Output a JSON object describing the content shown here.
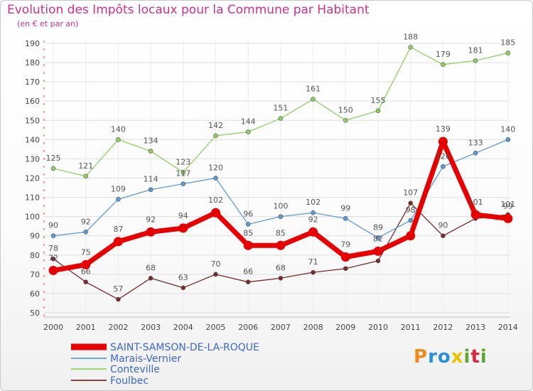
{
  "title": "Evolution des Impôts locaux pour la Commune par Habitant",
  "subtitle": "(en € et par an)",
  "logo": {
    "text": "Proxiti",
    "letters": [
      "P",
      "r",
      "o",
      "x",
      "i",
      "t",
      "i"
    ],
    "colors": [
      "#f08a1c",
      "#2b8fd6",
      "#2b8fd6",
      "#e8c300",
      "#5aa832",
      "#d8283c",
      "#5aa832"
    ]
  },
  "chart_data": {
    "type": "line",
    "title": "Evolution des Impôts locaux pour la Commune par Habitant",
    "subtitle": "(en € et par an)",
    "x": [
      "2000",
      "2001",
      "2002",
      "2003",
      "2004",
      "2005",
      "2006",
      "2007",
      "2008",
      "2009",
      "2010",
      "2011",
      "2012",
      "2013",
      "2014"
    ],
    "ylim": [
      50,
      190
    ],
    "yticks": [
      50,
      60,
      70,
      80,
      90,
      100,
      110,
      120,
      130,
      140,
      150,
      160,
      170,
      180,
      190
    ],
    "grid": true,
    "legend_position": "bottom-left",
    "series": [
      {
        "name": "SAINT-SAMSON-DE-LA-ROQUE",
        "color": "#e60000",
        "width": 7,
        "values": [
          72,
          75,
          87,
          92,
          94,
          102,
          85,
          85,
          92,
          79,
          82,
          90,
          139,
          101,
          99
        ],
        "labels": [
          "72",
          "75",
          "87",
          "92",
          "94",
          "102",
          "85",
          "85",
          "92",
          "79",
          "82",
          "",
          "139",
          "101",
          "99"
        ]
      },
      {
        "name": "Marais-Vernier",
        "color": "#5b9bd5",
        "width": 1.3,
        "values": [
          90,
          92,
          109,
          114,
          117,
          120,
          96,
          100,
          102,
          99,
          89,
          98,
          126,
          133,
          140
        ],
        "labels": [
          "90",
          "92",
          "109",
          "114",
          "117",
          "120",
          "96",
          "100",
          "102",
          "99",
          "89",
          "98",
          "126",
          "133",
          "140"
        ]
      },
      {
        "name": "Conteville",
        "color": "#8fd060",
        "width": 1.3,
        "values": [
          125,
          121,
          140,
          134,
          123,
          142,
          144,
          151,
          161,
          150,
          155,
          188,
          179,
          181,
          185
        ],
        "labels": [
          "125",
          "121",
          "140",
          "134",
          "123",
          "142",
          "144",
          "151",
          "161",
          "150",
          "155",
          "188",
          "179",
          "181",
          "185"
        ]
      },
      {
        "name": "Foulbec",
        "color": "#7a2a2a",
        "width": 1.3,
        "values": [
          78,
          66,
          57,
          68,
          63,
          70,
          66,
          68,
          71,
          73,
          77,
          107,
          90,
          99,
          101
        ],
        "labels": [
          "78",
          "66",
          "57",
          "68",
          "63",
          "70",
          "66",
          "68",
          "71",
          "",
          "",
          "107",
          "90",
          "",
          "101"
        ]
      }
    ]
  }
}
